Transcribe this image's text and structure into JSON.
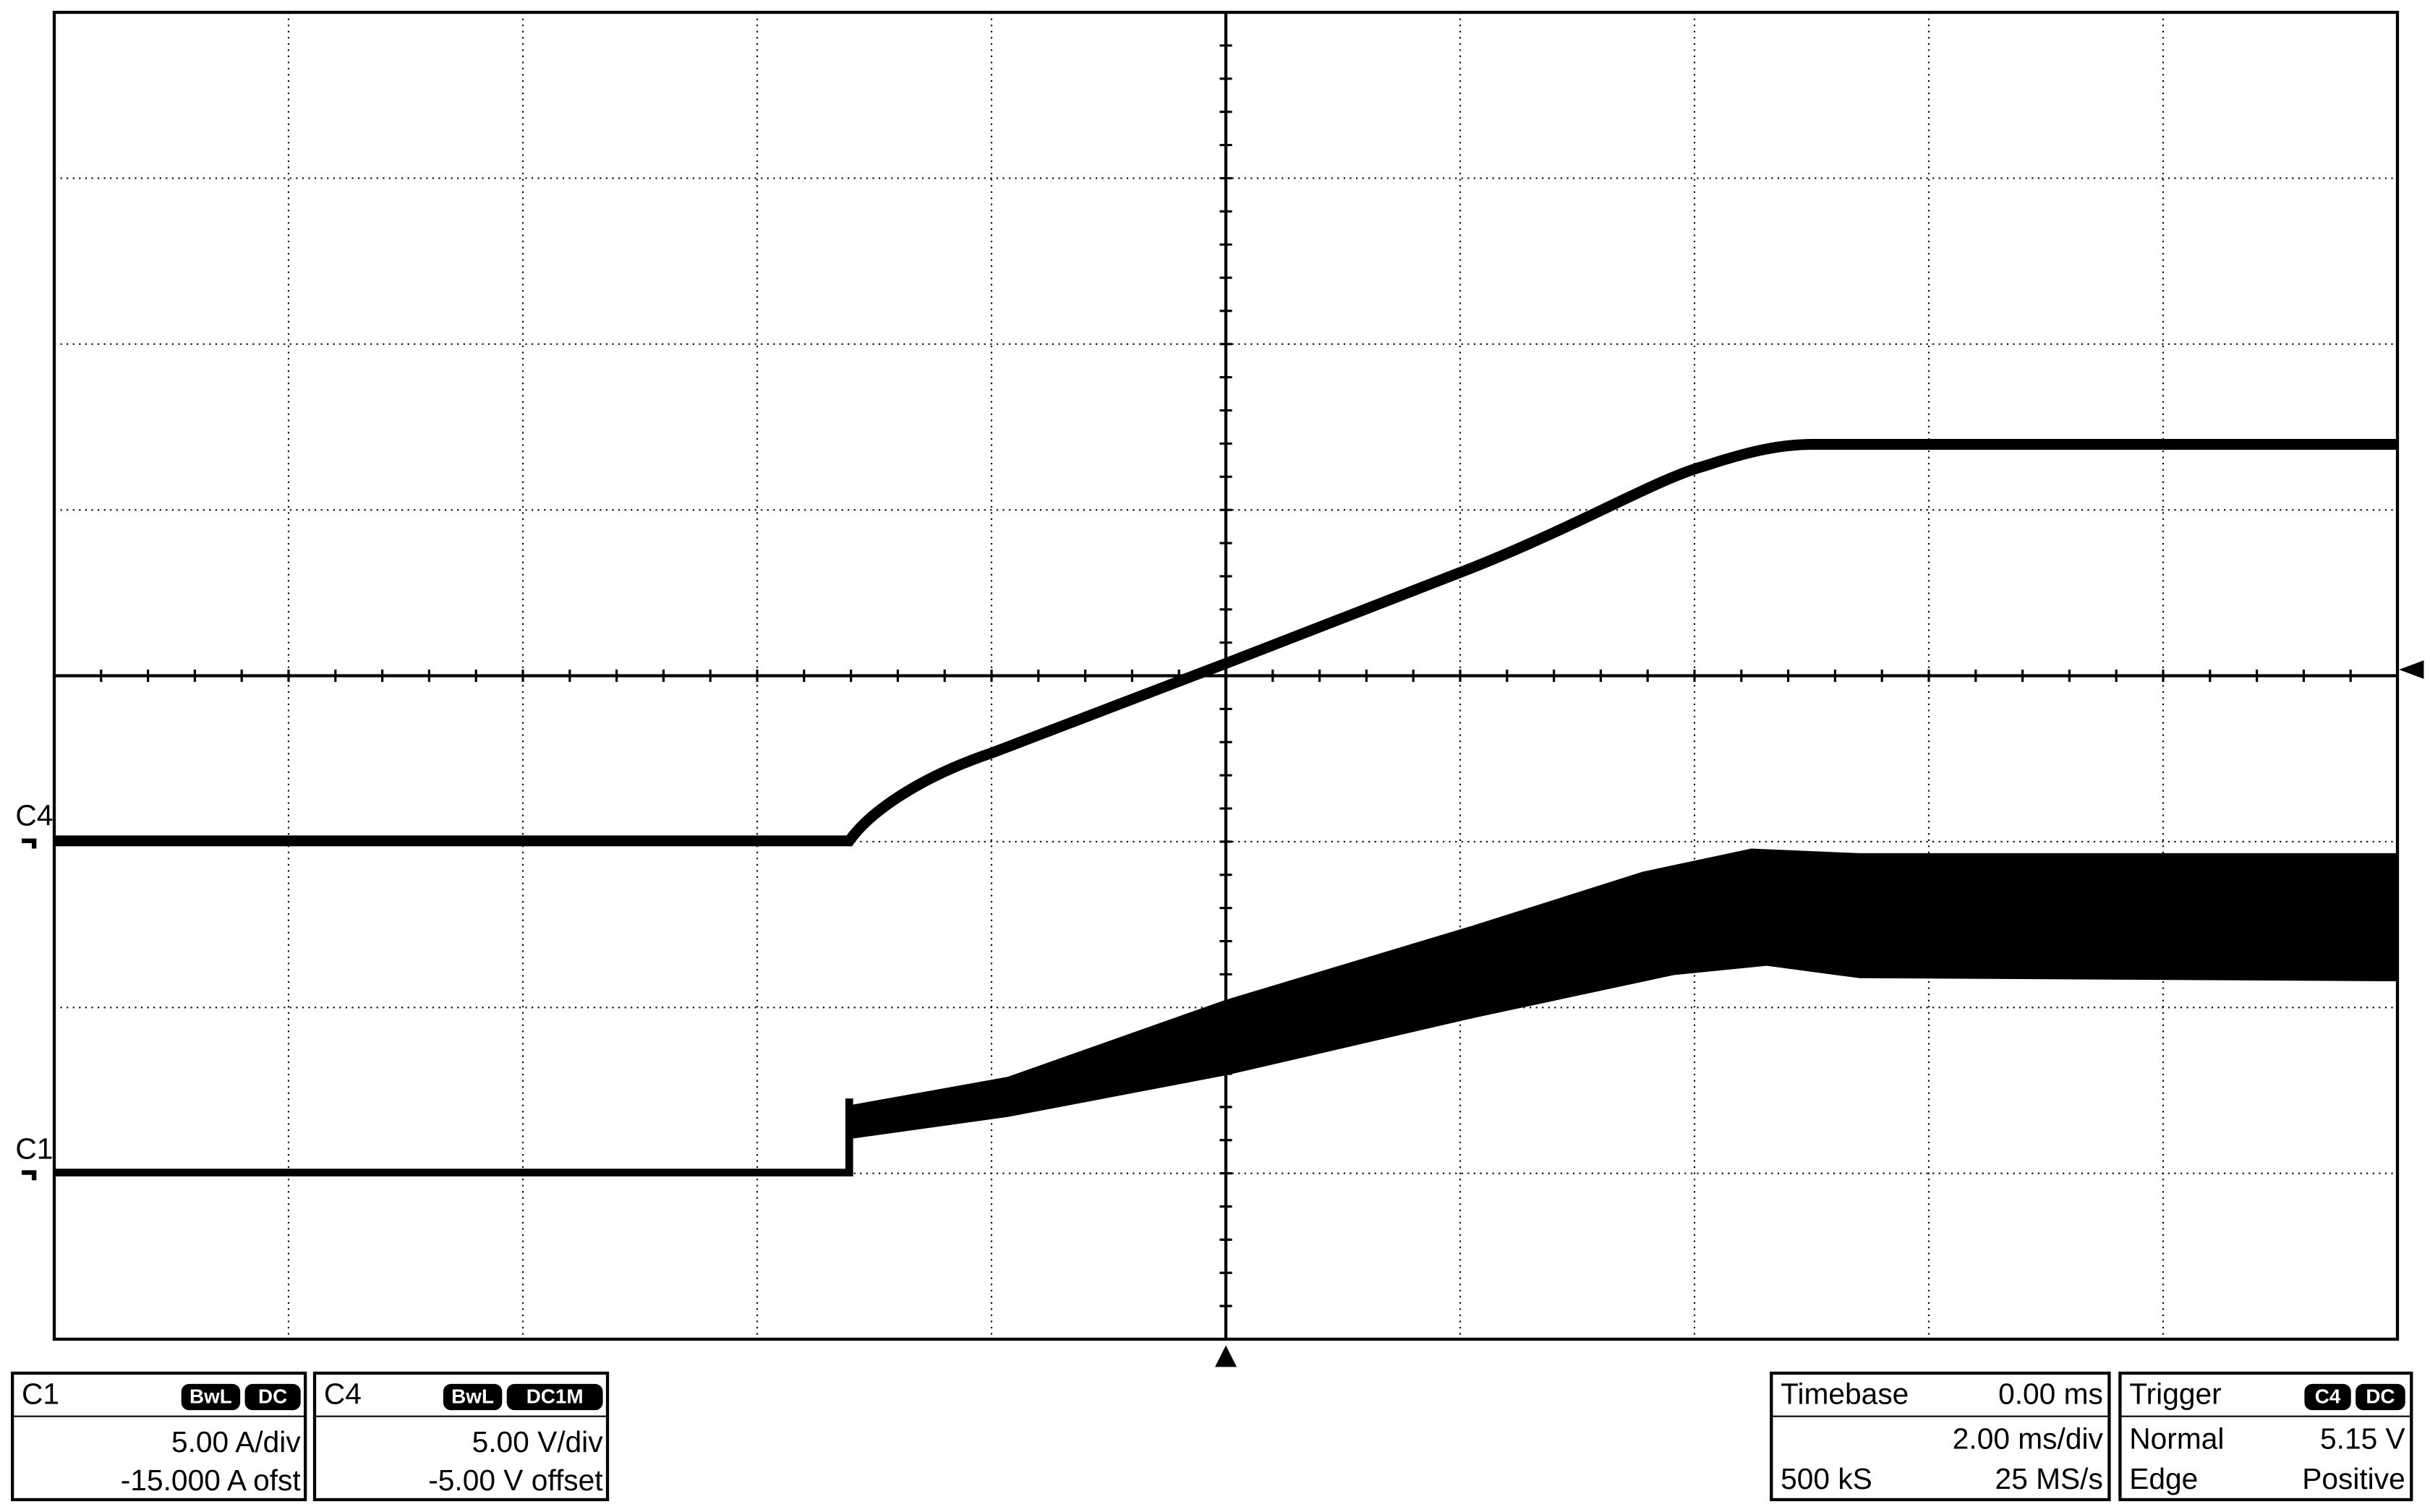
{
  "channels": {
    "c4": "C4",
    "c1": "C1"
  },
  "panels": {
    "c1": {
      "name": "C1",
      "badges": [
        "BwL",
        "DC"
      ],
      "scale": "5.00 A/div",
      "offset": "-15.000 A ofst"
    },
    "c4": {
      "name": "C4",
      "badges": [
        "BwL",
        "DC1M"
      ],
      "scale": "5.00 V/div",
      "offset": "-5.00 V offset"
    },
    "timebase": {
      "name": "Timebase",
      "delay": "0.00 ms",
      "scale": "2.00 ms/div",
      "samples": "500 kS",
      "rate": "25 MS/s"
    },
    "trigger": {
      "name": "Trigger",
      "badges": [
        "C4",
        "DC"
      ],
      "mode": "Normal",
      "level": "5.15 V",
      "type": "Edge",
      "slope": "Positive"
    }
  }
}
